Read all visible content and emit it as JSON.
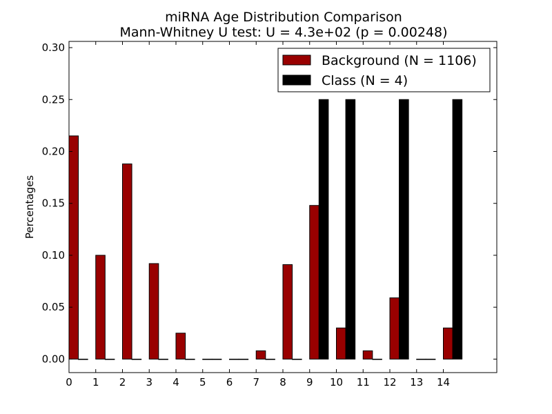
{
  "chart_data": {
    "type": "bar",
    "title": "miRNA Age Distribution Comparison",
    "subtitle": "Mann-Whitney U test: U = 4.3e+02 (p = 0.00248)",
    "xlabel": "",
    "ylabel": "Percentages",
    "categories": [
      "0",
      "1",
      "2",
      "3",
      "4",
      "5",
      "6",
      "7",
      "8",
      "9",
      "10",
      "11",
      "12",
      "13",
      "14"
    ],
    "x_tick_labels": [
      "0",
      "1",
      "2",
      "3",
      "4",
      "5",
      "6",
      "7",
      "8",
      "9",
      "10",
      "11",
      "12",
      "13",
      "14"
    ],
    "xlim": [
      0,
      16
    ],
    "ylim": [
      -0.013,
      0.306
    ],
    "y_ticks": [
      0.0,
      0.05,
      0.1,
      0.15,
      0.2,
      0.25,
      0.3
    ],
    "y_tick_labels": [
      "0.00",
      "0.05",
      "0.10",
      "0.15",
      "0.20",
      "0.25",
      "0.30"
    ],
    "grid": false,
    "legend_position": "top-right",
    "series": [
      {
        "name": "Background (N = 1106)",
        "color": "#990000",
        "values": [
          0.215,
          0.1,
          0.188,
          0.092,
          0.025,
          0.0,
          0.0,
          0.008,
          0.091,
          0.148,
          0.03,
          0.008,
          0.059,
          0.0,
          0.03
        ]
      },
      {
        "name": "Class (N = 4)",
        "color": "#000000",
        "values": [
          0.0,
          0.0,
          0.0,
          0.0,
          0.0,
          0.0,
          0.0,
          0.0,
          0.0,
          0.25,
          0.25,
          0.0,
          0.25,
          0.0,
          0.25
        ]
      }
    ]
  }
}
